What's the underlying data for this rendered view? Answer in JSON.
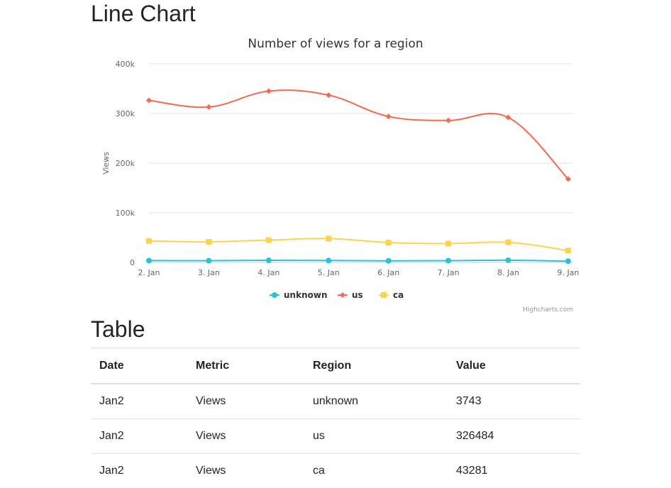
{
  "page": {
    "chart_heading": "Line Chart",
    "table_heading": "Table"
  },
  "chart_data": {
    "type": "line",
    "title": "Number of views for a region",
    "xlabel": "",
    "ylabel": "Views",
    "categories": [
      "2. Jan",
      "3. Jan",
      "4. Jan",
      "5. Jan",
      "6. Jan",
      "7. Jan",
      "8. Jan",
      "9. Jan"
    ],
    "ylim": [
      0,
      400000
    ],
    "yticks": [
      0,
      100000,
      200000,
      300000,
      400000
    ],
    "ytick_labels": [
      "0",
      "100k",
      "200k",
      "300k",
      "400k"
    ],
    "grid": true,
    "legend_placement": "bottom-center",
    "credits": "Highcharts.com",
    "series": [
      {
        "name": "unknown",
        "color": "#2bc1db",
        "marker": "circle",
        "values": [
          3743,
          3500,
          4200,
          3900,
          3300,
          3600,
          4500,
          2500
        ]
      },
      {
        "name": "us",
        "color": "#f4694f",
        "marker": "diamond",
        "values": [
          326484,
          313000,
          345000,
          337000,
          294000,
          286000,
          292000,
          168000
        ]
      },
      {
        "name": "ca",
        "color": "#fcd34b",
        "marker": "square",
        "values": [
          43281,
          41500,
          45000,
          48000,
          40000,
          38000,
          40500,
          24000
        ]
      }
    ]
  },
  "table": {
    "headers": {
      "date": "Date",
      "metric": "Metric",
      "region": "Region",
      "value": "Value"
    },
    "rows": [
      {
        "date": "Jan2",
        "metric": "Views",
        "region": "unknown",
        "value": "3743"
      },
      {
        "date": "Jan2",
        "metric": "Views",
        "region": "us",
        "value": "326484"
      },
      {
        "date": "Jan2",
        "metric": "Views",
        "region": "ca",
        "value": "43281"
      }
    ]
  }
}
